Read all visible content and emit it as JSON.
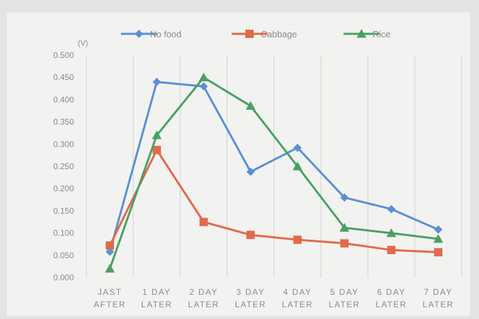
{
  "chart_data": {
    "type": "line",
    "unit_label": "(V)",
    "categories": [
      [
        "JAST",
        "AFTER"
      ],
      [
        "1 DAY",
        "LATER"
      ],
      [
        "2 DAY",
        "LATER"
      ],
      [
        "3 DAY",
        "LATER"
      ],
      [
        "4 DAY",
        "LATER"
      ],
      [
        "5 DAY",
        "LATER"
      ],
      [
        "6 DAY",
        "LATER"
      ],
      [
        "7 DAY",
        "LATER"
      ]
    ],
    "ylim": [
      0,
      0.5
    ],
    "yticks": [
      "0.000",
      "0.050",
      "0.100",
      "0.150",
      "0.200",
      "0.250",
      "0.300",
      "0.350",
      "0.400",
      "0.450",
      "0.500"
    ],
    "grid": "vertical",
    "legend_position": "top",
    "series": [
      {
        "name": "No food",
        "color": "#5b8fd6",
        "marker": "diamond",
        "values": [
          0.058,
          0.44,
          0.43,
          0.238,
          0.292,
          0.18,
          0.154,
          0.108
        ]
      },
      {
        "name": "Cabbage",
        "color": "#e06a4c",
        "marker": "square",
        "values": [
          0.072,
          0.287,
          0.125,
          0.096,
          0.085,
          0.077,
          0.062,
          0.057
        ]
      },
      {
        "name": "Rice",
        "color": "#4aa063",
        "marker": "triangle",
        "values": [
          0.02,
          0.32,
          0.45,
          0.386,
          0.25,
          0.112,
          0.1,
          0.087
        ]
      }
    ]
  }
}
